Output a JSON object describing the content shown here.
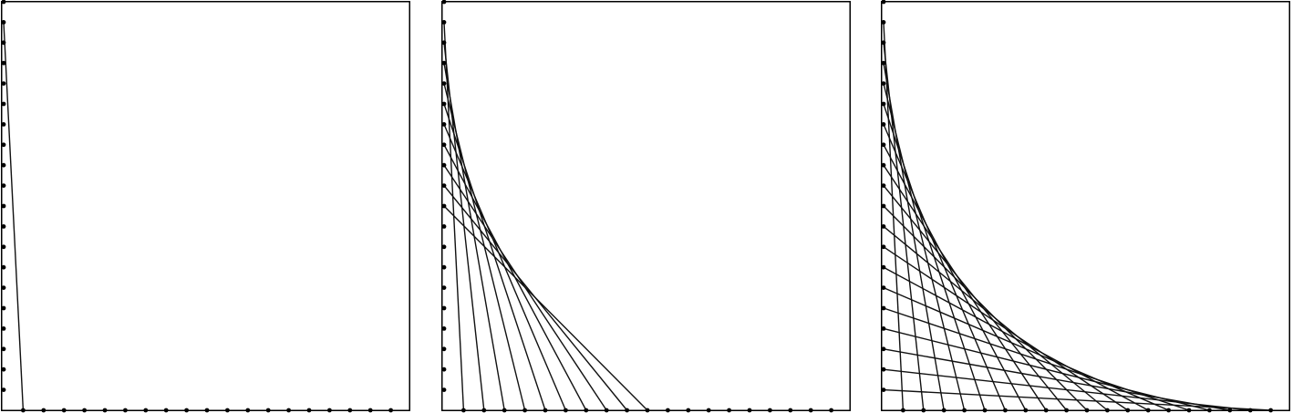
{
  "figure": {
    "description_free": true,
    "pins_per_edge": 20,
    "colors": {
      "background": "#ffffff",
      "frame": "#000000",
      "thread": "#111111",
      "pin": "#000000"
    },
    "panels": [
      {
        "id": "panel-1",
        "threads_drawn": 1
      },
      {
        "id": "panel-2",
        "threads_drawn": 10
      },
      {
        "id": "panel-3",
        "threads_drawn": 19
      }
    ]
  }
}
